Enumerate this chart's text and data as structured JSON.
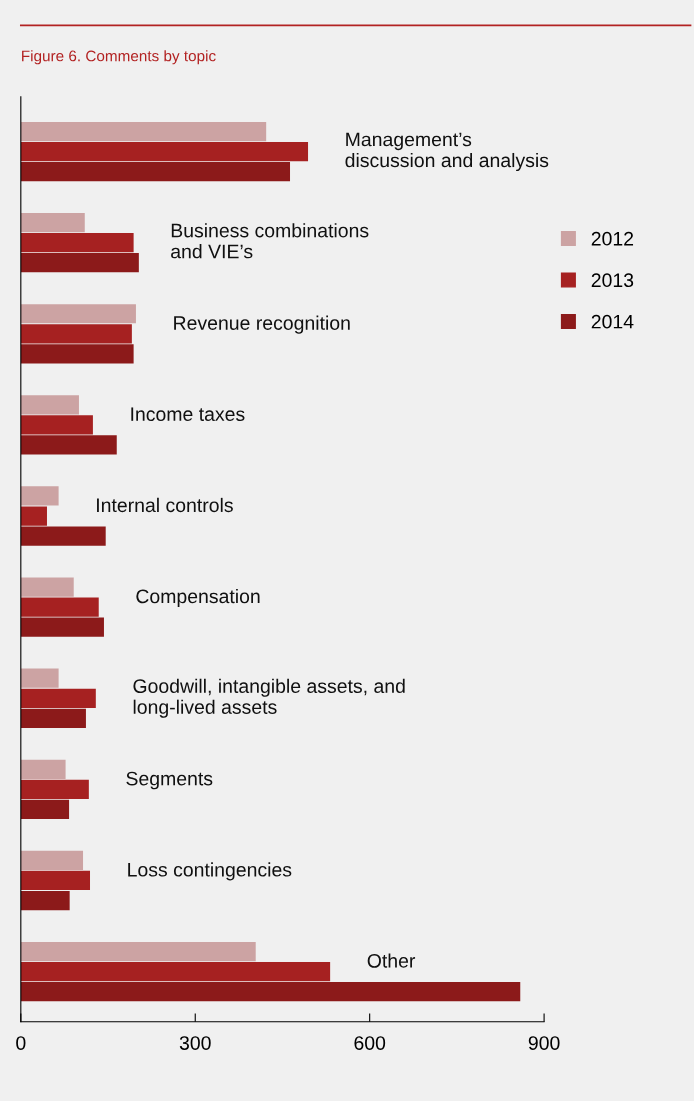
{
  "chart_data": {
    "type": "bar",
    "orientation": "horizontal",
    "title": "Figure 6. Comments by topic",
    "categories": [
      "Management’s\ndiscussion and analysis",
      "Business combinations\nand VIE’s",
      "Revenue recognition",
      "Income taxes",
      "Internal controls",
      "Compensation",
      "Goodwill, intangible assets, and\nlong-lived assets",
      "Segments",
      "Loss contingencies",
      "Other"
    ],
    "series": [
      {
        "name": "2012",
        "color": "#cca3a3",
        "values": [
          422,
          110,
          198,
          100,
          65,
          91,
          65,
          77,
          107,
          404
        ]
      },
      {
        "name": "2013",
        "color": "#a62121",
        "values": [
          494,
          194,
          191,
          124,
          45,
          134,
          129,
          117,
          119,
          532
        ]
      },
      {
        "name": "2014",
        "color": "#8c1a1a",
        "values": [
          463,
          203,
          194,
          165,
          146,
          143,
          112,
          83,
          84,
          859
        ]
      }
    ],
    "xlim": [
      0,
      900
    ],
    "xticks": [
      0,
      300,
      600,
      900
    ],
    "grid": false,
    "legend": "right"
  }
}
